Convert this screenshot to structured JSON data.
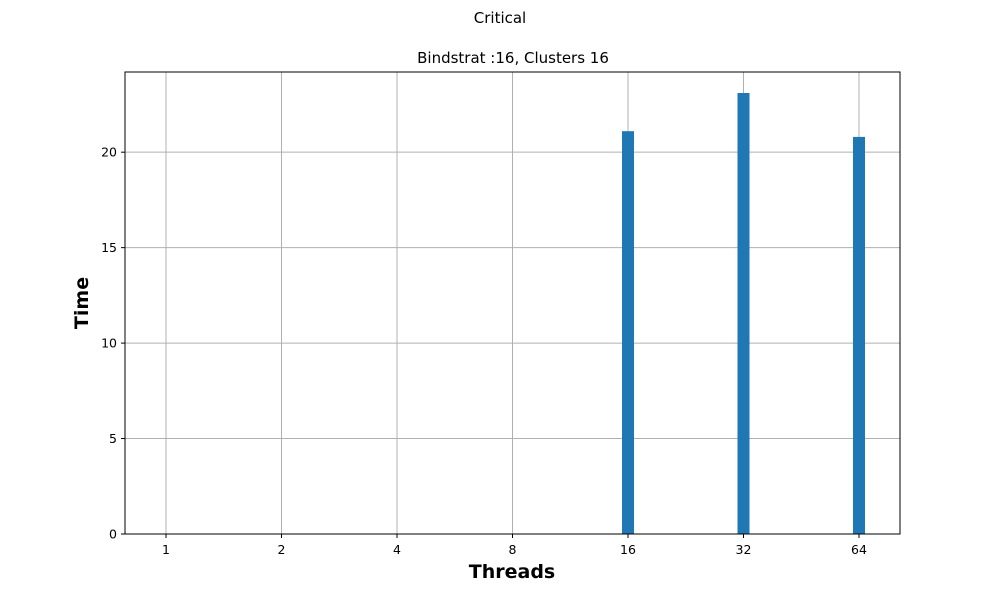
{
  "suptitle": "Critical",
  "chart_data": {
    "type": "bar",
    "title": "Bindstrat :16, Clusters 16",
    "xlabel": "Threads",
    "ylabel": "Time",
    "categories": [
      "1",
      "2",
      "4",
      "8",
      "16",
      "32",
      "64"
    ],
    "values": [
      0,
      0,
      0,
      0,
      21.1,
      23.1,
      20.8
    ],
    "ylim": [
      0,
      24.2
    ],
    "yticks": [
      0,
      5,
      10,
      15,
      20
    ],
    "grid": true,
    "bar_color": "#1f77b4",
    "grid_color": "#b0b0b0"
  }
}
